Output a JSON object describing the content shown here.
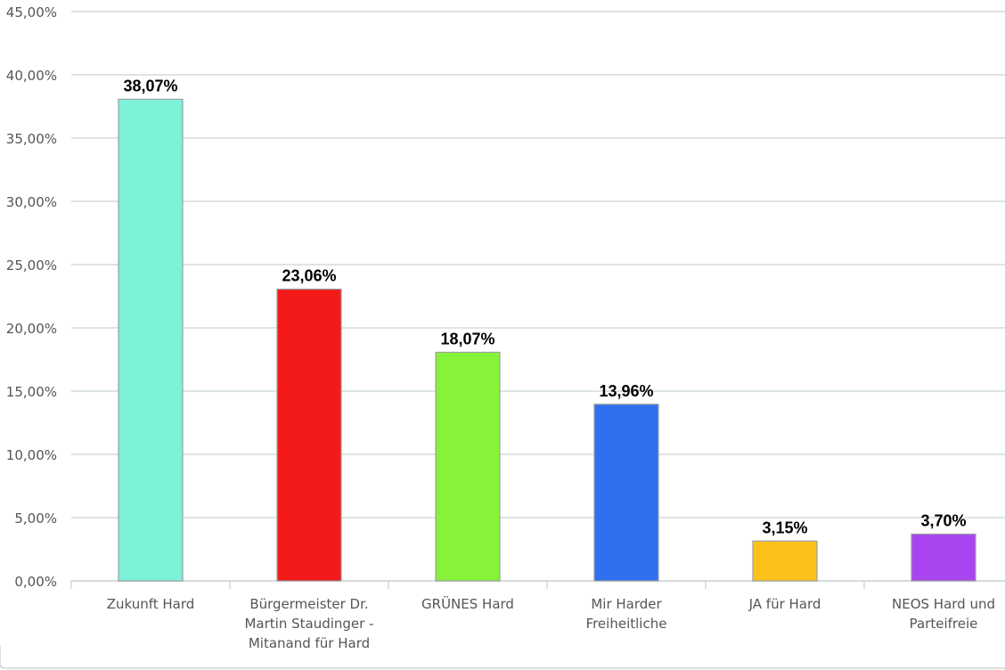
{
  "chart_data": {
    "type": "bar",
    "title": "",
    "xlabel": "",
    "ylabel": "",
    "ylim": [
      0,
      45
    ],
    "yticks": [
      0,
      5,
      10,
      15,
      20,
      25,
      30,
      35,
      40,
      45
    ],
    "ytick_labels": [
      "0,00%",
      "5,00%",
      "10,00%",
      "15,00%",
      "20,00%",
      "25,00%",
      "30,00%",
      "35,00%",
      "40,00%",
      "45,00%"
    ],
    "grid": true,
    "legend": "none",
    "categories": [
      [
        "Zukunft Hard"
      ],
      [
        "Bürgermeister Dr.",
        "Martin Staudinger -",
        "Mitanand für Hard"
      ],
      [
        "GRÜNES Hard"
      ],
      [
        "Mir Harder",
        "Freiheitliche"
      ],
      [
        "JA für Hard"
      ],
      [
        "NEOS Hard und",
        "Parteifreie"
      ]
    ],
    "values": [
      38.07,
      23.06,
      18.07,
      13.96,
      3.15,
      3.7
    ],
    "data_labels": [
      "38,07%",
      "23,06%",
      "18,07%",
      "13,96%",
      "3,15%",
      "3,70%"
    ],
    "colors": [
      "#7cf2d8",
      "#f41a1a",
      "#86f238",
      "#2f6ff0",
      "#fcc21b",
      "#a845f0"
    ]
  }
}
